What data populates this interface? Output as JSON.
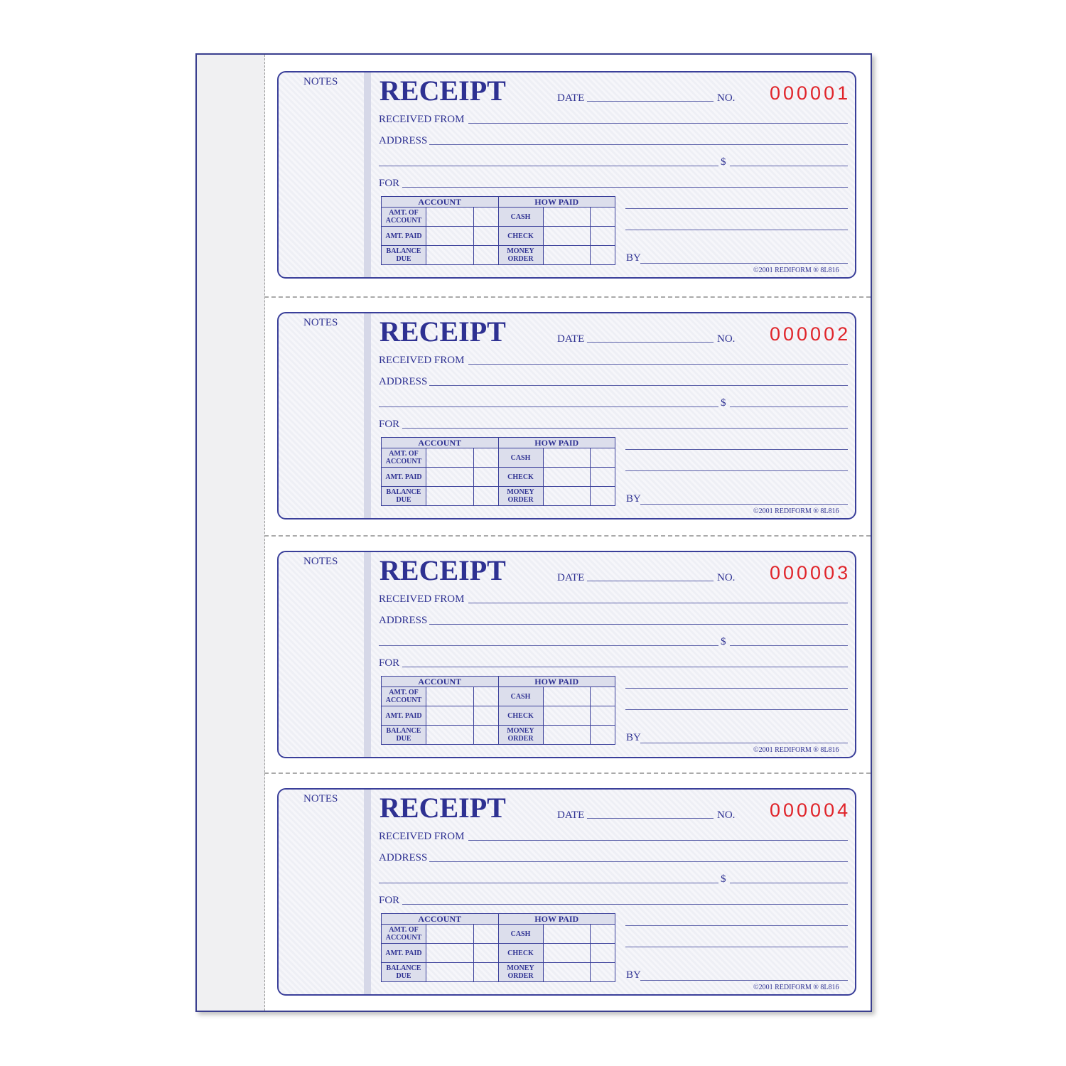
{
  "receipts": [
    {
      "number": "000001"
    },
    {
      "number": "000002"
    },
    {
      "number": "000003"
    },
    {
      "number": "000004"
    }
  ],
  "labels": {
    "notes": "NOTES",
    "title": "RECEIPT",
    "date": "DATE",
    "no": "NO.",
    "received_from": "RECEIVED FROM",
    "address": "ADDRESS",
    "dollar": "$",
    "for": "FOR",
    "by": "BY",
    "account": "ACCOUNT",
    "how_paid": "HOW PAID",
    "amt_of_account": "AMT. OF ACCOUNT",
    "amt_paid": "AMT. PAID",
    "balance_due": "BALANCE DUE",
    "cash": "CASH",
    "check": "CHECK",
    "money_order": "MONEY ORDER",
    "copyright": "©2001 REDIFORM ® 8L816"
  },
  "colors": {
    "ink": "#2e3192",
    "number": "#e0242a"
  }
}
